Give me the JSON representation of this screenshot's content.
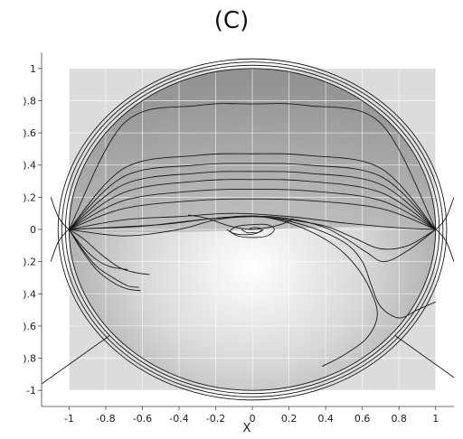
{
  "figure": {
    "panel_label": "(C)"
  },
  "chart_data": {
    "type": "line",
    "title": "(C)",
    "xlabel": "X",
    "ylabel": "",
    "xlim": [
      -1.15,
      1.1
    ],
    "ylim": [
      -1.1,
      1.1
    ],
    "xticks": [
      -1,
      -0.8,
      -0.6,
      -0.4,
      -0.2,
      0,
      0.2,
      0.4,
      0.6,
      0.8,
      1
    ],
    "xtick_labels": [
      "-1",
      "-0.8",
      "-0.6",
      "-0.4",
      "-0.2",
      "0",
      "0.2",
      "0.4",
      "0.6",
      "0.8",
      "1"
    ],
    "yticks": [
      1,
      0.8,
      0.6,
      0.4,
      0.2,
      0,
      -0.2,
      -0.4,
      -0.6,
      -0.8,
      -1
    ],
    "ytick_labels": [
      "1",
      ").8",
      ").6",
      ").4",
      ").2",
      "0",
      ").2",
      ").4",
      ").6",
      ").8",
      "-1"
    ],
    "grid": true,
    "background_square": [
      -1,
      1
    ],
    "circle_radii": [
      1.0,
      1.02,
      1.04,
      1.06
    ],
    "colors": {
      "square_fill": "#dcdcdc",
      "disk_dark": "#8a8a8a",
      "disk_light": "#ffffff",
      "curve": "#1a1a1a",
      "grid": "#ffffff"
    },
    "series": [
      {
        "x": [
          -1,
          -0.7,
          -0.3,
          0,
          0.3,
          0.7,
          1
        ],
        "y": [
          0,
          0.66,
          0.77,
          0.78,
          0.77,
          0.66,
          0
        ]
      },
      {
        "x": [
          -1,
          -0.7,
          -0.3,
          0,
          0.3,
          0.7,
          1
        ],
        "y": [
          0,
          0.38,
          0.46,
          0.47,
          0.46,
          0.38,
          0
        ]
      },
      {
        "x": [
          -1,
          -0.7,
          -0.3,
          0,
          0.3,
          0.7,
          1
        ],
        "y": [
          0,
          0.33,
          0.4,
          0.41,
          0.4,
          0.33,
          0
        ]
      },
      {
        "x": [
          -1,
          -0.7,
          -0.3,
          0,
          0.3,
          0.7,
          1
        ],
        "y": [
          0,
          0.28,
          0.35,
          0.36,
          0.35,
          0.28,
          0
        ]
      },
      {
        "x": [
          -1,
          -0.7,
          -0.3,
          0,
          0.3,
          0.7,
          1
        ],
        "y": [
          0,
          0.23,
          0.3,
          0.31,
          0.3,
          0.23,
          0
        ]
      },
      {
        "x": [
          -1,
          -0.7,
          -0.3,
          0,
          0.3,
          0.7,
          1
        ],
        "y": [
          0,
          0.18,
          0.24,
          0.25,
          0.24,
          0.18,
          0
        ]
      },
      {
        "x": [
          -1,
          -0.7,
          -0.3,
          0,
          0.3,
          0.7,
          1
        ],
        "y": [
          0,
          0.13,
          0.18,
          0.19,
          0.18,
          0.13,
          0
        ]
      },
      {
        "x": [
          -1,
          -0.7,
          -0.4,
          -0.1,
          0.2,
          0.5,
          0.8,
          1
        ],
        "y": [
          0,
          0.06,
          0.08,
          0.1,
          0.08,
          0.04,
          0.01,
          0
        ]
      },
      {
        "x": [
          -1,
          -0.7,
          -0.4,
          -0.2,
          0,
          0.2,
          0.4,
          0.55,
          0.7,
          0.85,
          1
        ],
        "y": [
          0,
          -0.04,
          0.0,
          0.06,
          0.08,
          0.06,
          0.02,
          -0.05,
          -0.12,
          -0.1,
          0
        ]
      },
      {
        "x": [
          -1,
          -0.6,
          -0.2,
          0.1,
          0.35,
          0.5,
          0.62,
          0.72,
          0.85,
          1
        ],
        "y": [
          0,
          0.02,
          0.07,
          0.08,
          0.03,
          -0.05,
          -0.14,
          -0.2,
          -0.13,
          0
        ]
      },
      {
        "x": [
          -1,
          -0.5,
          -0.2,
          0.05,
          0.3,
          0.5,
          0.6,
          0.65,
          0.7,
          0.8,
          0.9,
          1
        ],
        "y": [
          0,
          0.03,
          0.07,
          0.08,
          0.02,
          -0.08,
          -0.2,
          -0.35,
          -0.48,
          -0.55,
          -0.5,
          -0.45
        ]
      },
      {
        "x": [
          -0.1,
          0.05,
          0.25,
          0.45,
          0.58,
          0.66,
          0.68,
          0.62,
          0.5,
          0.4,
          0.38
        ],
        "y": [
          0.08,
          0.08,
          0.02,
          -0.1,
          -0.25,
          -0.42,
          -0.55,
          -0.68,
          -0.78,
          -0.84,
          -0.85
        ]
      },
      {
        "x": [
          -0.35,
          -0.25,
          -0.12,
          0.0,
          0.12,
          0.2,
          0.22
        ],
        "y": [
          0.09,
          0.07,
          0.02,
          0.0,
          0.02,
          0.05,
          0.07
        ]
      },
      {
        "x": [
          -0.14,
          -0.08,
          0.0,
          0.08,
          0.12,
          0.08,
          0.0,
          -0.08,
          -0.12,
          -0.08,
          0.0,
          0.05,
          0.06
        ],
        "y": [
          0.0,
          -0.04,
          -0.05,
          -0.04,
          0.0,
          0.03,
          0.03,
          0.02,
          -0.01,
          -0.03,
          -0.03,
          -0.01,
          0.0
        ]
      },
      {
        "x": [
          -0.06,
          -0.03,
          0.0,
          0.03,
          0.05,
          0.03,
          0.0,
          -0.02
        ],
        "y": [
          0.0,
          -0.02,
          -0.02,
          -0.02,
          0.0,
          0.01,
          0.01,
          0.0
        ]
      },
      {
        "x": [
          -1,
          -0.94,
          -0.86,
          -0.78,
          -0.68
        ],
        "y": [
          0,
          -0.09,
          -0.18,
          -0.23,
          -0.25
        ]
      },
      {
        "x": [
          -1,
          -0.93,
          -0.85,
          -0.76,
          -0.68,
          -0.62
        ],
        "y": [
          0,
          -0.12,
          -0.23,
          -0.3,
          -0.35,
          -0.36
        ]
      },
      {
        "x": [
          -1,
          -0.93,
          -0.85,
          -0.76,
          -0.68,
          -0.61
        ],
        "y": [
          0,
          -0.13,
          -0.25,
          -0.33,
          -0.37,
          -0.38
        ]
      },
      {
        "x": [
          -1,
          -0.92,
          -0.82,
          -0.72,
          -0.63,
          -0.56
        ],
        "y": [
          0,
          -0.06,
          -0.16,
          -0.24,
          -0.27,
          -0.28
        ]
      },
      {
        "x": [
          -1.1,
          -1.06,
          -1.02,
          -1.0
        ],
        "y": [
          0.2,
          0.08,
          0.02,
          0.0
        ]
      },
      {
        "x": [
          -1.1,
          -1.06,
          -1.02,
          -1.0
        ],
        "y": [
          -0.2,
          -0.08,
          -0.02,
          0.0
        ]
      },
      {
        "x": [
          1.0,
          1.02,
          1.06,
          1.1
        ],
        "y": [
          0.0,
          0.02,
          0.08,
          0.2
        ]
      },
      {
        "x": [
          1.0,
          1.02,
          1.06,
          1.1
        ],
        "y": [
          0.0,
          -0.02,
          -0.08,
          -0.2
        ]
      },
      {
        "x": [
          -1.15,
          -0.78
        ],
        "y": [
          -0.96,
          -0.66
        ]
      },
      {
        "x": [
          0.78,
          1.1
        ],
        "y": [
          -0.66,
          -0.92
        ]
      }
    ]
  }
}
